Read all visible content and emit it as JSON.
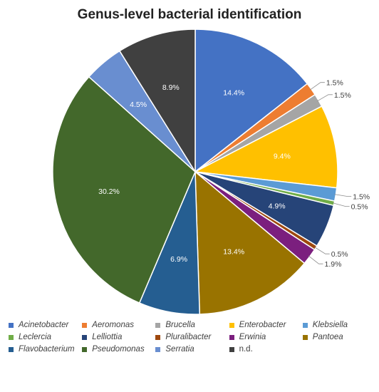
{
  "chart_data": {
    "type": "pie",
    "title": "Genus-level bacterial identification",
    "slices": [
      {
        "label": "Acinetobacter",
        "value": 14.4,
        "display": "14.4%",
        "color": "#4472C4",
        "label_pos": "inside"
      },
      {
        "label": "Aeromonas",
        "value": 1.5,
        "display": "1.5%",
        "color": "#ED7D31",
        "label_pos": "outside"
      },
      {
        "label": "Brucella",
        "value": 1.5,
        "display": "1.5%",
        "color": "#A5A5A5",
        "label_pos": "outside"
      },
      {
        "label": "Enterobacter",
        "value": 9.4,
        "display": "9.4%",
        "color": "#FFC000",
        "label_pos": "inside"
      },
      {
        "label": "Klebsiella",
        "value": 1.5,
        "display": "1.5%",
        "color": "#5B9BD5",
        "label_pos": "outside"
      },
      {
        "label": "Leclercia",
        "value": 0.5,
        "display": "0.5%",
        "color": "#70AD47",
        "label_pos": "outside"
      },
      {
        "label": "Lelliottia",
        "value": 4.9,
        "display": "4.9%",
        "color": "#264478",
        "label_pos": "inside"
      },
      {
        "label": "Pluralibacter",
        "value": 0.5,
        "display": "0.5%",
        "color": "#9E480E",
        "label_pos": "outside"
      },
      {
        "label": "Erwinia",
        "value": 1.9,
        "display": "1.9%",
        "color": "#7B1F7E",
        "label_pos": "outside"
      },
      {
        "label": "Pantoea",
        "value": 13.4,
        "display": "13.4%",
        "color": "#997300",
        "label_pos": "inside"
      },
      {
        "label": "Flavobacterium",
        "value": 6.9,
        "display": "6.9%",
        "color": "#255E91",
        "label_pos": "inside"
      },
      {
        "label": "Pseudomonas",
        "value": 30.2,
        "display": "30.2%",
        "color": "#43682B",
        "label_pos": "inside"
      },
      {
        "label": "Serratia",
        "value": 4.5,
        "display": "4.5%",
        "color": "#698ED0",
        "label_pos": "inside"
      },
      {
        "label": "n.d.",
        "value": 8.9,
        "display": "8.9%",
        "color": "#404040",
        "label_pos": "inside"
      }
    ],
    "legend": {
      "placement": "bottom",
      "entries": [
        "Acinetobacter",
        "Aeromonas",
        "Brucella",
        "Enterobacter",
        "Klebsiella",
        "Leclercia",
        "Lelliottia",
        "Pluralibacter",
        "Erwinia",
        "Pantoea",
        "Flavobacterium",
        "Pseudomonas",
        "Serratia",
        "n.d."
      ]
    }
  }
}
